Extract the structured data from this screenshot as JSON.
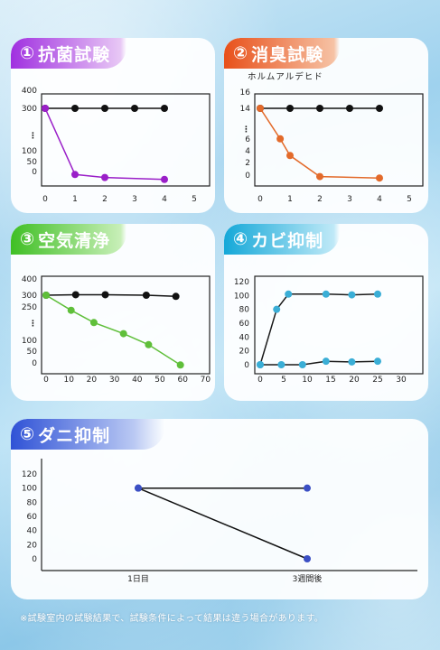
{
  "charts": [
    {
      "id": "c1",
      "tab": {
        "num": "①",
        "label": "抗菌試験",
        "color": "purple"
      },
      "caption": ""
    },
    {
      "id": "c2",
      "tab": {
        "num": "②",
        "label": "消臭試験",
        "color": "orange"
      },
      "caption": "ホルムアルデヒド"
    },
    {
      "id": "c3",
      "tab": {
        "num": "③",
        "label": "空気清浄",
        "color": "green"
      },
      "caption": ""
    },
    {
      "id": "c4",
      "tab": {
        "num": "④",
        "label": "カビ抑制",
        "color": "cyan"
      },
      "caption": ""
    },
    {
      "id": "c5",
      "tab": {
        "num": "⑤",
        "label": "ダニ抑制",
        "color": "blue"
      },
      "caption": ""
    }
  ],
  "note": "※試験室内の試験結果で、試験条件によって結果は違う場合があります。",
  "chart_data": [
    {
      "type": "line",
      "title": "①抗菌試験",
      "x_ticks": [
        "0",
        "1",
        "2",
        "3",
        "4",
        "5"
      ],
      "xlim": [
        0,
        5
      ],
      "y_ticks": [
        "0",
        "50",
        "100",
        "⋮",
        "300",
        "400"
      ],
      "series": [
        {
          "color": "#111111",
          "x": [
            0,
            1,
            2,
            3,
            4
          ],
          "y": [
            300,
            300,
            300,
            300,
            300
          ]
        },
        {
          "color": "#9a1fc8",
          "x": [
            0,
            1,
            2,
            4
          ],
          "y": [
            300,
            16,
            8,
            3
          ]
        }
      ]
    },
    {
      "type": "line",
      "title": "②消臭試験",
      "ylabel": "ホルムアルデヒド",
      "x_ticks": [
        "0",
        "1",
        "2",
        "3",
        "4",
        "5"
      ],
      "xlim": [
        0,
        5
      ],
      "y_ticks": [
        "0",
        "2",
        "4",
        "6",
        "⋮",
        "14",
        "16"
      ],
      "series": [
        {
          "color": "#111111",
          "x": [
            0,
            1,
            2,
            3,
            4
          ],
          "y": [
            14,
            14,
            14,
            14,
            14
          ]
        },
        {
          "color": "#e36a2a",
          "x": [
            0,
            0.67,
            1,
            2,
            4
          ],
          "y": [
            14,
            6.5,
            3.5,
            0.3,
            0.1
          ]
        }
      ]
    },
    {
      "type": "line",
      "title": "③空気清浄",
      "x_ticks": [
        "0",
        "10",
        "20",
        "30",
        "40",
        "50",
        "60",
        "70"
      ],
      "xlim": [
        0,
        70
      ],
      "y_ticks": [
        "0",
        "50",
        "100",
        "⋮",
        "250",
        "300",
        "400"
      ],
      "series": [
        {
          "color": "#111111",
          "x": [
            0,
            13,
            26,
            44,
            57
          ],
          "y": [
            300,
            302,
            302,
            300,
            295
          ]
        },
        {
          "color": "#5fbf3a",
          "x": [
            0,
            11,
            21,
            34,
            45,
            59
          ],
          "y": [
            300,
            235,
            180,
            130,
            80,
            5
          ]
        }
      ]
    },
    {
      "type": "line",
      "title": "④カビ抑制",
      "x_ticks": [
        "0",
        "5",
        "10",
        "15",
        "20",
        "25",
        "30"
      ],
      "xlim": [
        0,
        30
      ],
      "y_ticks": [
        "0",
        "20",
        "40",
        "60",
        "80",
        "100",
        "120"
      ],
      "ylim": [
        0,
        120
      ],
      "series": [
        {
          "color": "#1a1a1a",
          "marker": "#3aaed6",
          "x": [
            0,
            3.5,
            6,
            14,
            19.5,
            25
          ],
          "y": [
            0,
            80,
            102,
            102,
            101,
            102
          ]
        },
        {
          "color": "#1a1a1a",
          "marker": "#3aaed6",
          "x": [
            0,
            4.5,
            9,
            14,
            19.5,
            25
          ],
          "y": [
            0,
            0,
            0,
            5,
            4,
            5
          ]
        }
      ]
    },
    {
      "type": "line",
      "title": "⑤ダニ抑制",
      "categories": [
        "1日目",
        "3週間後"
      ],
      "y_ticks": [
        "0",
        "20",
        "40",
        "60",
        "80",
        "100",
        "120"
      ],
      "ylim": [
        0,
        120
      ],
      "series": [
        {
          "color": "#111111",
          "marker": "#3b4fc4",
          "values": [
            100,
            100
          ]
        },
        {
          "color": "#111111",
          "marker": "#3b4fc4",
          "values": [
            100,
            0
          ]
        }
      ]
    }
  ]
}
